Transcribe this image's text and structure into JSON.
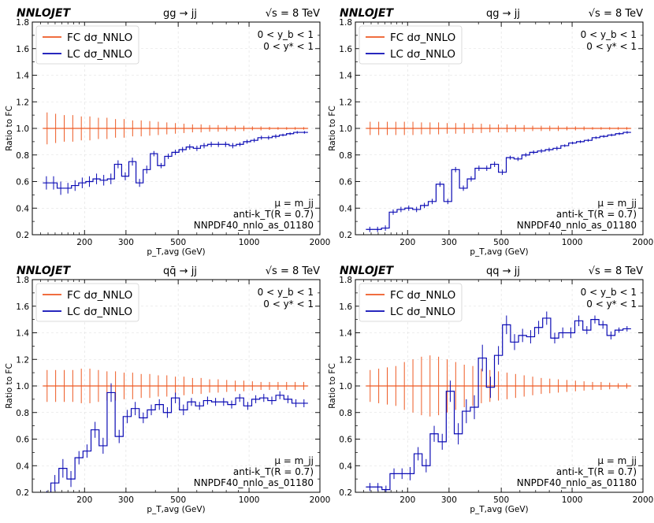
{
  "figure": {
    "colors": {
      "fc": "#ee5a24",
      "lc": "#0a0ab4",
      "grid": "#dddddd"
    },
    "x_ticks": [
      200,
      300,
      500,
      1000,
      2000
    ],
    "y_ticks": [
      0.2,
      0.4,
      0.6,
      0.8,
      1.0,
      1.2,
      1.4,
      1.6,
      1.8
    ],
    "ylabel": "Ratio to FC",
    "xlabel": "p_{T,avg} (GeV)"
  },
  "chart_data": [
    {
      "type": "step",
      "brand": "NNLOJET",
      "process": "gg → jj",
      "energy": "√s = 8 TeV",
      "cuts": [
        "0 < y_b < 1",
        "0 < y* < 1"
      ],
      "scale": "μ = m_jj",
      "algorithm": "anti-k_T(R = 0.7)",
      "pdf": "NNPDF40_nnlo_as_01180",
      "xlabel": "p_T,avg (GeV)",
      "ylabel": "Ratio to FC",
      "xlim": [
        120,
        2000
      ],
      "ylim": [
        0.2,
        1.8
      ],
      "xscale": "log",
      "grid": true,
      "legend_loc": "upper left",
      "series": [
        {
          "name": "FC dσ_NNLO",
          "color": "#ee5a24",
          "values": [
            1,
            1,
            1,
            1,
            1,
            1,
            1,
            1,
            1,
            1,
            1,
            1,
            1,
            1,
            1,
            1,
            1,
            1,
            1,
            1,
            1,
            1,
            1,
            1,
            1,
            1,
            1,
            1,
            1,
            1,
            1
          ],
          "errors": [
            0.12,
            0.11,
            0.1,
            0.1,
            0.09,
            0.09,
            0.08,
            0.08,
            0.07,
            0.07,
            0.06,
            0.06,
            0.055,
            0.05,
            0.045,
            0.04,
            0.035,
            0.03,
            0.03,
            0.025,
            0.025,
            0.02,
            0.02,
            0.02,
            0.015,
            0.015,
            0.012,
            0.01,
            0.01,
            0.01,
            0.01
          ]
        },
        {
          "name": "LC dσ_NNLO",
          "color": "#0a0ab4",
          "values": [
            0.59,
            0.59,
            0.55,
            0.55,
            0.57,
            0.59,
            0.6,
            0.62,
            0.61,
            0.62,
            0.73,
            0.64,
            0.75,
            0.59,
            0.69,
            0.81,
            0.72,
            0.79,
            0.82,
            0.84,
            0.86,
            0.85,
            0.87,
            0.88,
            0.88,
            0.88,
            0.87,
            0.88,
            0.9,
            0.91,
            0.93,
            0.93,
            0.94,
            0.95,
            0.96,
            0.97,
            0.97
          ],
          "errors": [
            0.05,
            0.05,
            0.05,
            0.04,
            0.04,
            0.04,
            0.04,
            0.04,
            0.04,
            0.04,
            0.03,
            0.03,
            0.03,
            0.03,
            0.03,
            0.02,
            0.02,
            0.02,
            0.02,
            0.02,
            0.02,
            0.02,
            0.02,
            0.02,
            0.02,
            0.02,
            0.02,
            0.015,
            0.015,
            0.015,
            0.015,
            0.015,
            0.015,
            0.01,
            0.01,
            0.01,
            0.01
          ]
        }
      ]
    },
    {
      "type": "step",
      "brand": "NNLOJET",
      "process": "qg → jj",
      "energy": "√s = 8 TeV",
      "cuts": [
        "0 < y_b < 1",
        "0 < y* < 1"
      ],
      "scale": "μ = m_jj",
      "algorithm": "anti-k_T(R = 0.7)",
      "pdf": "NNPDF40_nnlo_as_01180",
      "xlabel": "p_T,avg (GeV)",
      "ylabel": "Ratio to FC",
      "xlim": [
        120,
        2000
      ],
      "ylim": [
        0.2,
        1.8
      ],
      "xscale": "log",
      "grid": true,
      "legend_loc": "upper left",
      "series": [
        {
          "name": "FC dσ_NNLO",
          "color": "#ee5a24",
          "values": [
            1,
            1,
            1,
            1,
            1,
            1,
            1,
            1,
            1,
            1,
            1,
            1,
            1,
            1,
            1,
            1,
            1,
            1,
            1,
            1,
            1,
            1,
            1,
            1,
            1,
            1,
            1,
            1,
            1,
            1,
            1
          ],
          "errors": [
            0.05,
            0.05,
            0.05,
            0.05,
            0.05,
            0.05,
            0.045,
            0.045,
            0.045,
            0.04,
            0.04,
            0.04,
            0.035,
            0.035,
            0.03,
            0.03,
            0.03,
            0.025,
            0.025,
            0.02,
            0.02,
            0.02,
            0.02,
            0.015,
            0.015,
            0.015,
            0.01,
            0.01,
            0.01,
            0.01,
            0.01
          ]
        },
        {
          "name": "LC dσ_NNLO",
          "color": "#0a0ab4",
          "values": [
            0.24,
            0.24,
            0.25,
            0.37,
            0.39,
            0.4,
            0.39,
            0.42,
            0.45,
            0.58,
            0.45,
            0.69,
            0.55,
            0.62,
            0.7,
            0.7,
            0.73,
            0.67,
            0.78,
            0.77,
            0.8,
            0.82,
            0.83,
            0.84,
            0.85,
            0.87,
            0.89,
            0.9,
            0.91,
            0.93,
            0.94,
            0.95,
            0.96,
            0.97
          ],
          "errors": [
            0.02,
            0.02,
            0.02,
            0.02,
            0.02,
            0.02,
            0.02,
            0.02,
            0.02,
            0.02,
            0.02,
            0.02,
            0.02,
            0.02,
            0.02,
            0.02,
            0.02,
            0.02,
            0.015,
            0.015,
            0.015,
            0.015,
            0.015,
            0.015,
            0.015,
            0.01,
            0.01,
            0.01,
            0.01,
            0.01,
            0.01,
            0.01,
            0.01,
            0.01
          ]
        }
      ]
    },
    {
      "type": "step",
      "brand": "NNLOJET",
      "process": "qq̄ → jj",
      "energy": "√s = 8 TeV",
      "cuts": [
        "0 < y_b < 1",
        "0 < y* < 1"
      ],
      "scale": "μ = m_jj",
      "algorithm": "anti-k_T(R = 0.7)",
      "pdf": "NNPDF40_nnlo_as_01180",
      "xlabel": "p_T,avg (GeV)",
      "ylabel": "Ratio to FC",
      "xlim": [
        120,
        2000
      ],
      "ylim": [
        0.2,
        1.8
      ],
      "xscale": "log",
      "grid": true,
      "legend_loc": "upper left",
      "series": [
        {
          "name": "FC dσ_NNLO",
          "color": "#ee5a24",
          "values": [
            1,
            1,
            1,
            1,
            1,
            1,
            1,
            1,
            1,
            1,
            1,
            1,
            1,
            1,
            1,
            1,
            1,
            1,
            1,
            1,
            1,
            1,
            1,
            1,
            1,
            1,
            1,
            1,
            1,
            1,
            1
          ],
          "errors": [
            0.12,
            0.12,
            0.12,
            0.12,
            0.13,
            0.13,
            0.12,
            0.11,
            0.11,
            0.1,
            0.1,
            0.09,
            0.09,
            0.08,
            0.08,
            0.07,
            0.07,
            0.06,
            0.06,
            0.05,
            0.05,
            0.045,
            0.04,
            0.04,
            0.035,
            0.03,
            0.03,
            0.03,
            0.03,
            0.03,
            0.03
          ]
        },
        {
          "name": "LC dσ_NNLO",
          "color": "#0a0ab4",
          "values": [
            0.15,
            0.27,
            0.38,
            0.3,
            0.46,
            0.51,
            0.67,
            0.55,
            0.95,
            0.62,
            0.77,
            0.83,
            0.76,
            0.82,
            0.86,
            0.8,
            0.91,
            0.82,
            0.88,
            0.85,
            0.89,
            0.88,
            0.88,
            0.86,
            0.91,
            0.85,
            0.9,
            0.91,
            0.89,
            0.93,
            0.9,
            0.87,
            0.87
          ],
          "errors": [
            0.06,
            0.06,
            0.07,
            0.06,
            0.05,
            0.05,
            0.06,
            0.06,
            0.07,
            0.05,
            0.05,
            0.05,
            0.04,
            0.04,
            0.04,
            0.04,
            0.04,
            0.04,
            0.03,
            0.03,
            0.03,
            0.03,
            0.03,
            0.03,
            0.03,
            0.03,
            0.03,
            0.03,
            0.03,
            0.03,
            0.03,
            0.03,
            0.03
          ]
        }
      ]
    },
    {
      "type": "step",
      "brand": "NNLOJET",
      "process": "qq → jj",
      "energy": "√s = 8 TeV",
      "cuts": [
        "0 < y_b < 1",
        "0 < y* < 1"
      ],
      "scale": "μ = m_jj",
      "algorithm": "anti-k_T(R = 0.7)",
      "pdf": "NNPDF40_nnlo_as_01180",
      "xlabel": "p_T,avg (GeV)",
      "ylabel": "Ratio to FC",
      "xlim": [
        120,
        2000
      ],
      "ylim": [
        0.2,
        1.8
      ],
      "xscale": "log",
      "grid": true,
      "legend_loc": "upper left",
      "series": [
        {
          "name": "FC dσ_NNLO",
          "color": "#ee5a24",
          "values": [
            1,
            1,
            1,
            1,
            1,
            1,
            1,
            1,
            1,
            1,
            1,
            1,
            1,
            1,
            1,
            1,
            1,
            1,
            1,
            1,
            1,
            1,
            1,
            1,
            1,
            1,
            1,
            1,
            1,
            1,
            1
          ],
          "errors": [
            0.12,
            0.13,
            0.14,
            0.15,
            0.18,
            0.2,
            0.22,
            0.23,
            0.22,
            0.2,
            0.18,
            0.16,
            0.15,
            0.13,
            0.12,
            0.11,
            0.1,
            0.09,
            0.08,
            0.07,
            0.06,
            0.055,
            0.05,
            0.045,
            0.04,
            0.035,
            0.03,
            0.03,
            0.025,
            0.02,
            0.02
          ]
        },
        {
          "name": "LC dσ_NNLO",
          "color": "#0a0ab4",
          "values": [
            0.24,
            0.24,
            0.22,
            0.34,
            0.34,
            0.34,
            0.49,
            0.4,
            0.64,
            0.58,
            0.96,
            0.64,
            0.81,
            0.84,
            1.21,
            0.99,
            1.23,
            1.46,
            1.33,
            1.38,
            1.37,
            1.44,
            1.51,
            1.36,
            1.4,
            1.4,
            1.49,
            1.42,
            1.5,
            1.46,
            1.38,
            1.42,
            1.43
          ],
          "errors": [
            0.03,
            0.03,
            0.03,
            0.04,
            0.04,
            0.05,
            0.05,
            0.05,
            0.06,
            0.06,
            0.08,
            0.08,
            0.09,
            0.09,
            0.1,
            0.08,
            0.07,
            0.07,
            0.06,
            0.05,
            0.05,
            0.05,
            0.05,
            0.04,
            0.04,
            0.04,
            0.04,
            0.03,
            0.03,
            0.03,
            0.03,
            0.02,
            0.02
          ]
        }
      ]
    }
  ]
}
